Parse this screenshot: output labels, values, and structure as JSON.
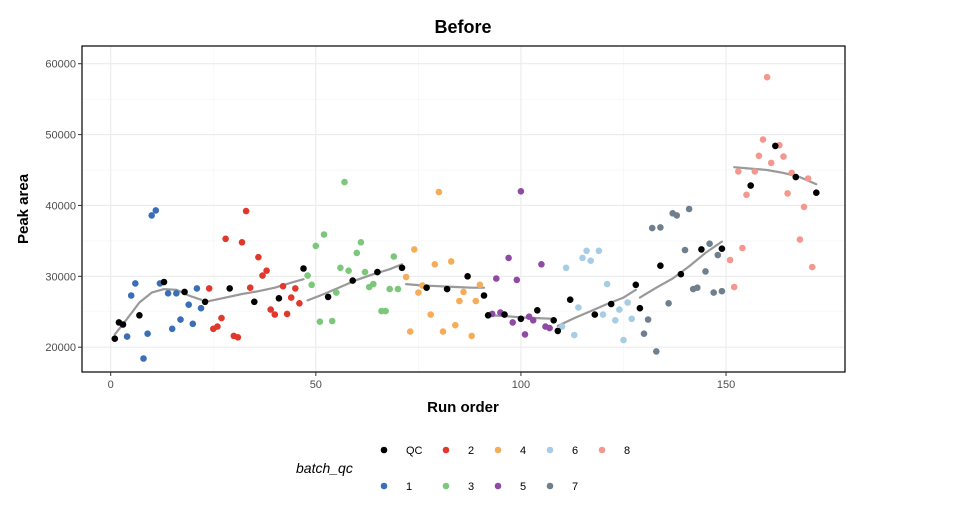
{
  "chart_data": {
    "type": "scatter",
    "title": "Before",
    "xlabel": "Run order",
    "ylabel": "Peak area",
    "xlim": [
      -7,
      179
    ],
    "ylim": [
      16500,
      62500
    ],
    "xticks": [
      0,
      50,
      100,
      150
    ],
    "yticks": [
      20000,
      30000,
      40000,
      50000,
      60000
    ],
    "ytick_labels": [
      "20000",
      "30000",
      "40000",
      "50000",
      "60000"
    ],
    "grid": true,
    "legend": {
      "title": "batch_qc",
      "position": "bottom",
      "items": [
        {
          "label": "QC",
          "color": "#000000"
        },
        {
          "label": "1",
          "color": "#3a6fb7"
        },
        {
          "label": "2",
          "color": "#e2382b"
        },
        {
          "label": "3",
          "color": "#7cc77b"
        },
        {
          "label": "4",
          "color": "#f6ad5a"
        },
        {
          "label": "5",
          "color": "#8e4aa5"
        },
        {
          "label": "6",
          "color": "#a6cde4"
        },
        {
          "label": "7",
          "color": "#6f7f8e"
        },
        {
          "label": "8",
          "color": "#f4978f"
        }
      ]
    },
    "trend_color": "#999999",
    "series": [
      {
        "name": "QC",
        "color": "#000000",
        "points": [
          [
            1,
            21200
          ],
          [
            2,
            23500
          ],
          [
            3,
            23200
          ],
          [
            7,
            24500
          ],
          [
            13,
            29200
          ],
          [
            18,
            27800
          ],
          [
            23,
            26400
          ],
          [
            29,
            28300
          ],
          [
            35,
            26400
          ],
          [
            41,
            26900
          ],
          [
            47,
            31100
          ],
          [
            53,
            27100
          ],
          [
            59,
            29400
          ],
          [
            65,
            30600
          ],
          [
            71,
            31200
          ],
          [
            77,
            28400
          ],
          [
            82,
            28200
          ],
          [
            87,
            30000
          ],
          [
            91,
            27300
          ],
          [
            92,
            24500
          ],
          [
            96,
            24600
          ],
          [
            100,
            24000
          ],
          [
            104,
            25200
          ],
          [
            108,
            23800
          ],
          [
            109,
            22300
          ],
          [
            112,
            26700
          ],
          [
            118,
            24600
          ],
          [
            122,
            26100
          ],
          [
            128,
            28800
          ],
          [
            129,
            25500
          ],
          [
            134,
            31500
          ],
          [
            139,
            30300
          ],
          [
            144,
            33800
          ],
          [
            149,
            33900
          ],
          [
            156,
            42800
          ],
          [
            162,
            48400
          ],
          [
            167,
            44000
          ],
          [
            172,
            41800
          ]
        ]
      },
      {
        "name": "1",
        "color": "#3a6fb7",
        "points": [
          [
            4,
            21500
          ],
          [
            5,
            27300
          ],
          [
            6,
            29000
          ],
          [
            8,
            18400
          ],
          [
            9,
            21900
          ],
          [
            10,
            38600
          ],
          [
            11,
            39300
          ],
          [
            12,
            29000
          ],
          [
            14,
            27600
          ],
          [
            15,
            22600
          ],
          [
            16,
            27600
          ],
          [
            17,
            23900
          ],
          [
            19,
            26000
          ],
          [
            20,
            23300
          ],
          [
            21,
            28300
          ],
          [
            22,
            25500
          ]
        ]
      },
      {
        "name": "2",
        "color": "#e2382b",
        "points": [
          [
            24,
            28300
          ],
          [
            25,
            22600
          ],
          [
            26,
            22900
          ],
          [
            27,
            24100
          ],
          [
            28,
            35300
          ],
          [
            30,
            21600
          ],
          [
            31,
            21400
          ],
          [
            32,
            34800
          ],
          [
            33,
            39200
          ],
          [
            34,
            28400
          ],
          [
            36,
            32700
          ],
          [
            37,
            30100
          ],
          [
            38,
            30800
          ],
          [
            39,
            25300
          ],
          [
            40,
            24600
          ],
          [
            42,
            28600
          ],
          [
            43,
            24700
          ],
          [
            44,
            27000
          ],
          [
            45,
            28300
          ],
          [
            46,
            26200
          ]
        ]
      },
      {
        "name": "3",
        "color": "#7cc77b",
        "points": [
          [
            48,
            30100
          ],
          [
            49,
            28800
          ],
          [
            50,
            34300
          ],
          [
            51,
            23600
          ],
          [
            52,
            35900
          ],
          [
            54,
            23700
          ],
          [
            55,
            27700
          ],
          [
            56,
            31200
          ],
          [
            57,
            43300
          ],
          [
            58,
            30800
          ],
          [
            60,
            33300
          ],
          [
            61,
            34800
          ],
          [
            62,
            30600
          ],
          [
            63,
            28500
          ],
          [
            64,
            28900
          ],
          [
            66,
            25100
          ],
          [
            67,
            25100
          ],
          [
            68,
            28200
          ],
          [
            69,
            32800
          ],
          [
            70,
            28200
          ]
        ]
      },
      {
        "name": "4",
        "color": "#f6ad5a",
        "points": [
          [
            72,
            29900
          ],
          [
            73,
            22200
          ],
          [
            74,
            33800
          ],
          [
            75,
            27700
          ],
          [
            76,
            28700
          ],
          [
            78,
            24600
          ],
          [
            79,
            31700
          ],
          [
            80,
            41900
          ],
          [
            81,
            22200
          ],
          [
            83,
            32100
          ],
          [
            84,
            23100
          ],
          [
            85,
            26500
          ],
          [
            86,
            27800
          ],
          [
            88,
            21600
          ],
          [
            89,
            26500
          ],
          [
            90,
            28800
          ]
        ]
      },
      {
        "name": "5",
        "color": "#8e4aa5",
        "points": [
          [
            93,
            24700
          ],
          [
            94,
            29700
          ],
          [
            95,
            24900
          ],
          [
            97,
            32600
          ],
          [
            98,
            23500
          ],
          [
            99,
            29500
          ],
          [
            100,
            42000
          ],
          [
            101,
            21800
          ],
          [
            102,
            24300
          ],
          [
            103,
            23800
          ],
          [
            105,
            31700
          ],
          [
            106,
            22900
          ],
          [
            107,
            22700
          ]
        ]
      },
      {
        "name": "6",
        "color": "#a6cde4",
        "points": [
          [
            110,
            22900
          ],
          [
            111,
            31200
          ],
          [
            113,
            21700
          ],
          [
            114,
            25600
          ],
          [
            115,
            32600
          ],
          [
            116,
            33600
          ],
          [
            117,
            32200
          ],
          [
            119,
            33600
          ],
          [
            120,
            24600
          ],
          [
            121,
            28900
          ],
          [
            123,
            23800
          ],
          [
            124,
            25300
          ],
          [
            125,
            21000
          ],
          [
            126,
            26300
          ],
          [
            127,
            24000
          ]
        ]
      },
      {
        "name": "7",
        "color": "#6f7f8e",
        "points": [
          [
            130,
            21900
          ],
          [
            131,
            23900
          ],
          [
            132,
            36800
          ],
          [
            133,
            19400
          ],
          [
            134,
            36900
          ],
          [
            136,
            26200
          ],
          [
            137,
            38900
          ],
          [
            138,
            38600
          ],
          [
            140,
            33700
          ],
          [
            141,
            39500
          ],
          [
            142,
            28200
          ],
          [
            143,
            28400
          ],
          [
            145,
            30700
          ],
          [
            146,
            34600
          ],
          [
            147,
            27700
          ],
          [
            148,
            33000
          ],
          [
            149,
            27900
          ]
        ]
      },
      {
        "name": "8",
        "color": "#f4978f",
        "points": [
          [
            151,
            32300
          ],
          [
            152,
            28500
          ],
          [
            153,
            44800
          ],
          [
            154,
            34000
          ],
          [
            155,
            41500
          ],
          [
            157,
            44800
          ],
          [
            158,
            47000
          ],
          [
            159,
            49300
          ],
          [
            160,
            58100
          ],
          [
            161,
            46000
          ],
          [
            163,
            48500
          ],
          [
            164,
            46900
          ],
          [
            165,
            41700
          ],
          [
            166,
            44600
          ],
          [
            168,
            35200
          ],
          [
            169,
            39800
          ],
          [
            170,
            43800
          ],
          [
            171,
            31300
          ]
        ]
      }
    ],
    "trend_segments": [
      [
        [
          1,
          21800
        ],
        [
          4,
          24000
        ],
        [
          7,
          26300
        ],
        [
          10,
          27700
        ],
        [
          13,
          28200
        ],
        [
          16,
          28100
        ],
        [
          19,
          27300
        ],
        [
          22,
          26700
        ]
      ],
      [
        [
          24,
          26500
        ],
        [
          28,
          27000
        ],
        [
          32,
          27500
        ],
        [
          36,
          27900
        ],
        [
          40,
          28400
        ],
        [
          44,
          29100
        ],
        [
          47,
          29600
        ]
      ],
      [
        [
          48,
          26600
        ],
        [
          52,
          27500
        ],
        [
          56,
          28500
        ],
        [
          60,
          29500
        ],
        [
          64,
          30300
        ],
        [
          68,
          31000
        ],
        [
          71,
          31700
        ]
      ],
      [
        [
          72,
          28900
        ],
        [
          76,
          28700
        ],
        [
          80,
          28600
        ],
        [
          84,
          28500
        ],
        [
          88,
          28400
        ],
        [
          91,
          28400
        ]
      ],
      [
        [
          92,
          24500
        ],
        [
          96,
          24400
        ],
        [
          100,
          24200
        ],
        [
          104,
          24100
        ],
        [
          108,
          24000
        ]
      ],
      [
        [
          109,
          23000
        ],
        [
          113,
          24100
        ],
        [
          117,
          25100
        ],
        [
          121,
          26100
        ],
        [
          125,
          27000
        ],
        [
          128,
          28100
        ]
      ],
      [
        [
          129,
          27000
        ],
        [
          133,
          28400
        ],
        [
          137,
          29700
        ],
        [
          141,
          31400
        ],
        [
          145,
          33300
        ],
        [
          149,
          34900
        ]
      ],
      [
        [
          152,
          45400
        ],
        [
          156,
          45200
        ],
        [
          160,
          45000
        ],
        [
          164,
          44600
        ],
        [
          168,
          44000
        ],
        [
          172,
          43000
        ]
      ]
    ]
  }
}
